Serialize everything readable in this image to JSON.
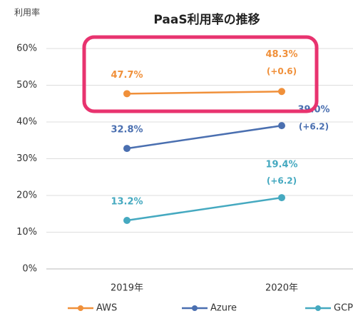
{
  "chart_data": {
    "type": "line",
    "title": "PaaS利用率の推移",
    "y_label": "利用率",
    "categories": [
      "2019年",
      "2020年"
    ],
    "series": [
      {
        "name": "AWS",
        "color": "#f0903a",
        "values": [
          47.7,
          48.3
        ],
        "value_labels": [
          "47.7%",
          "48.3%"
        ],
        "change_label": "(+0.6)"
      },
      {
        "name": "Azure",
        "color": "#4a6fb0",
        "values": [
          32.8,
          39.0
        ],
        "value_labels": [
          "32.8%",
          "39.0%"
        ],
        "change_label": "(+6.2)"
      },
      {
        "name": "GCP",
        "color": "#45a9c0",
        "values": [
          13.2,
          19.4
        ],
        "value_labels": [
          "13.2%",
          "19.4%"
        ],
        "change_label": "(+6.2)"
      }
    ],
    "ylim": [
      0,
      60
    ],
    "yticks": [
      {
        "value": 0,
        "label": "0%"
      },
      {
        "value": 10,
        "label": "10%"
      },
      {
        "value": 20,
        "label": "20%"
      },
      {
        "value": 30,
        "label": "30%"
      },
      {
        "value": 40,
        "label": "40%"
      },
      {
        "value": 50,
        "label": "50%"
      },
      {
        "value": 60,
        "label": "60%"
      }
    ],
    "grid": true,
    "legend": "bottom"
  }
}
